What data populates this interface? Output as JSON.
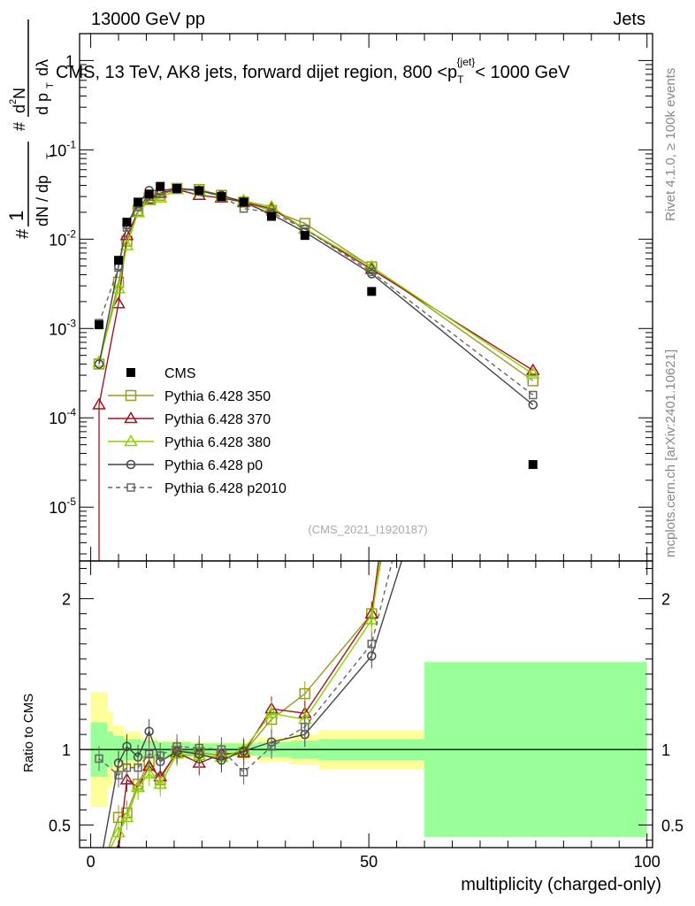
{
  "header": {
    "left": "13000 GeV pp",
    "right": "Jets"
  },
  "side_labels": {
    "rivet": "Rivet 4.1.0, ≥ 100k events",
    "site": "mcplots.cern.ch [arXiv:2401.10621]"
  },
  "chart_data": {
    "type": "line",
    "title": "CMS, 13 TeV, AK8 jets, forward dijet region, 800 < p_T^{jet} < 1000 GeV",
    "title_parts": {
      "before": "CMS, 13 TeV, AK8 jets, forward dijet region, 800 <p",
      "sub": "T",
      "sup": "{jet}",
      "after": "< 1000 GeV"
    },
    "analysis_id": "(CMS_2021_I1920187)",
    "xlabel": "multiplicity (charged-only)",
    "ylabel_main": "1/dN/dp_T d^2N/dp_T dλ",
    "ylabel_ratio": "Ratio to CMS",
    "xlim": [
      -2,
      101
    ],
    "ylim_main": [
      2.5e-06,
      2
    ],
    "ylim_ratio": [
      0.35,
      2.25
    ],
    "x_ticks": [
      0,
      50,
      100
    ],
    "x_tick_labels": [
      "0",
      "50",
      "100"
    ],
    "y_ticks_main": [
      "10^-5",
      "10^-4",
      "10^-3",
      "10^-2",
      "10^-1",
      "1"
    ],
    "y_ticks_ratio": [
      0.5,
      1,
      2
    ],
    "y_tick_labels_ratio": [
      "0.5",
      "1",
      "2"
    ],
    "legend": [
      {
        "label": "CMS",
        "color": "#000000",
        "marker": "filled-square",
        "dashed": false
      },
      {
        "label": "Pythia 6.428 350",
        "color": "#9a9a22",
        "marker": "open-square",
        "dashed": false
      },
      {
        "label": "Pythia 6.428 370",
        "color": "#a01420",
        "marker": "open-triangle",
        "dashed": false
      },
      {
        "label": "Pythia 6.428 380",
        "color": "#88d400",
        "marker": "open-triangle",
        "dashed": false
      },
      {
        "label": "Pythia 6.428 p0",
        "color": "#444444",
        "marker": "open-circle",
        "dashed": false
      },
      {
        "label": "Pythia 6.428 p2010",
        "color": "#666666",
        "marker": "open-square-small",
        "dashed": true
      }
    ],
    "cms": {
      "x": [
        1.5,
        5,
        6.5,
        8.5,
        10.5,
        12.5,
        15.5,
        19.5,
        23.5,
        27.5,
        32.5,
        38.5,
        50.5,
        79.5
      ],
      "y": [
        0.0011,
        0.0058,
        0.0155,
        0.026,
        0.032,
        0.039,
        0.037,
        0.035,
        0.03,
        0.026,
        0.018,
        0.011,
        0.0026,
        3e-05
      ],
      "ratio_band_edges": [
        0,
        3,
        4,
        6,
        9,
        12,
        18,
        22,
        26,
        30,
        36,
        41,
        60,
        100
      ],
      "stat_band": [
        0.18,
        0.12,
        0.09,
        0.07,
        0.06,
        0.05,
        0.04,
        0.04,
        0.04,
        0.05,
        0.06,
        0.07,
        0.58
      ],
      "tot_band": [
        0.38,
        0.25,
        0.16,
        0.12,
        0.08,
        0.06,
        0.05,
        0.05,
        0.05,
        0.08,
        0.1,
        0.13,
        0.57
      ]
    },
    "series": [
      {
        "name": "Pythia 6.428 350",
        "x": [
          1.5,
          5,
          6.5,
          8.5,
          10.5,
          12.5,
          15.5,
          19.5,
          23.5,
          27.5,
          32.5,
          38.5,
          50.5,
          79.5
        ],
        "y": [
          0.0004,
          0.0033,
          0.0095,
          0.021,
          0.029,
          0.031,
          0.037,
          0.036,
          0.031,
          0.026,
          0.021,
          0.015,
          0.0049,
          0.00026
        ],
        "ratio": [
          0.15,
          0.55,
          0.58,
          0.77,
          0.92,
          0.8,
          0.99,
          0.98,
          0.96,
          0.98,
          1.2,
          1.37,
          1.9,
          8.0
        ]
      },
      {
        "name": "Pythia 6.428 370",
        "x": [
          1.5,
          5,
          6.5,
          8.5,
          10.5,
          12.5,
          15.5,
          19.5,
          23.5,
          27.5,
          32.5,
          38.5,
          50.5,
          79.5
        ],
        "y": [
          0.00014,
          0.0019,
          0.011,
          0.02,
          0.028,
          0.033,
          0.036,
          0.031,
          0.029,
          0.026,
          0.022,
          0.013,
          0.0046,
          0.00034
        ],
        "ratio": [
          0.1,
          0.33,
          0.8,
          0.75,
          0.89,
          0.82,
          0.98,
          0.91,
          0.97,
          0.98,
          1.27,
          1.24,
          1.9,
          10.0
        ]
      },
      {
        "name": "Pythia 6.428 380",
        "x": [
          1.5,
          5,
          6.5,
          8.5,
          10.5,
          12.5,
          15.5,
          19.5,
          23.5,
          27.5,
          32.5,
          38.5,
          50.5,
          79.5
        ],
        "y": [
          0.00042,
          0.0028,
          0.0085,
          0.02,
          0.027,
          0.029,
          0.036,
          0.035,
          0.03,
          0.027,
          0.023,
          0.013,
          0.0049,
          0.00031
        ],
        "ratio": [
          0.2,
          0.45,
          0.55,
          0.75,
          0.84,
          0.77,
          0.97,
          0.96,
          0.95,
          1.0,
          1.24,
          1.2,
          1.86,
          9.5
        ]
      },
      {
        "name": "Pythia 6.428 p0",
        "x": [
          1.5,
          5,
          6.5,
          8.5,
          10.5,
          12.5,
          15.5,
          19.5,
          23.5,
          27.5,
          32.5,
          38.5,
          50.5,
          79.5
        ],
        "y": [
          0.0004,
          0.005,
          0.0145,
          0.025,
          0.035,
          0.035,
          0.037,
          0.035,
          0.031,
          0.026,
          0.019,
          0.012,
          0.0041,
          0.00014
        ],
        "ratio": [
          0.2,
          0.91,
          1.02,
          0.95,
          1.12,
          0.92,
          0.99,
          0.97,
          0.93,
          0.99,
          1.05,
          1.1,
          1.62,
          5.0
        ]
      },
      {
        "name": "Pythia 6.428 p2010",
        "x": [
          1.5,
          5,
          6.5,
          8.5,
          10.5,
          12.5,
          15.5,
          19.5,
          23.5,
          27.5,
          32.5,
          38.5,
          50.5,
          79.5
        ],
        "y": [
          0.00115,
          0.0048,
          0.0135,
          0.023,
          0.03,
          0.032,
          0.036,
          0.035,
          0.03,
          0.022,
          0.02,
          0.013,
          0.0043,
          0.00018
        ],
        "ratio": [
          0.94,
          0.83,
          0.88,
          0.88,
          0.97,
          0.96,
          1.02,
          1.01,
          1.0,
          0.85,
          1.02,
          1.15,
          1.7,
          6.0
        ]
      }
    ]
  }
}
